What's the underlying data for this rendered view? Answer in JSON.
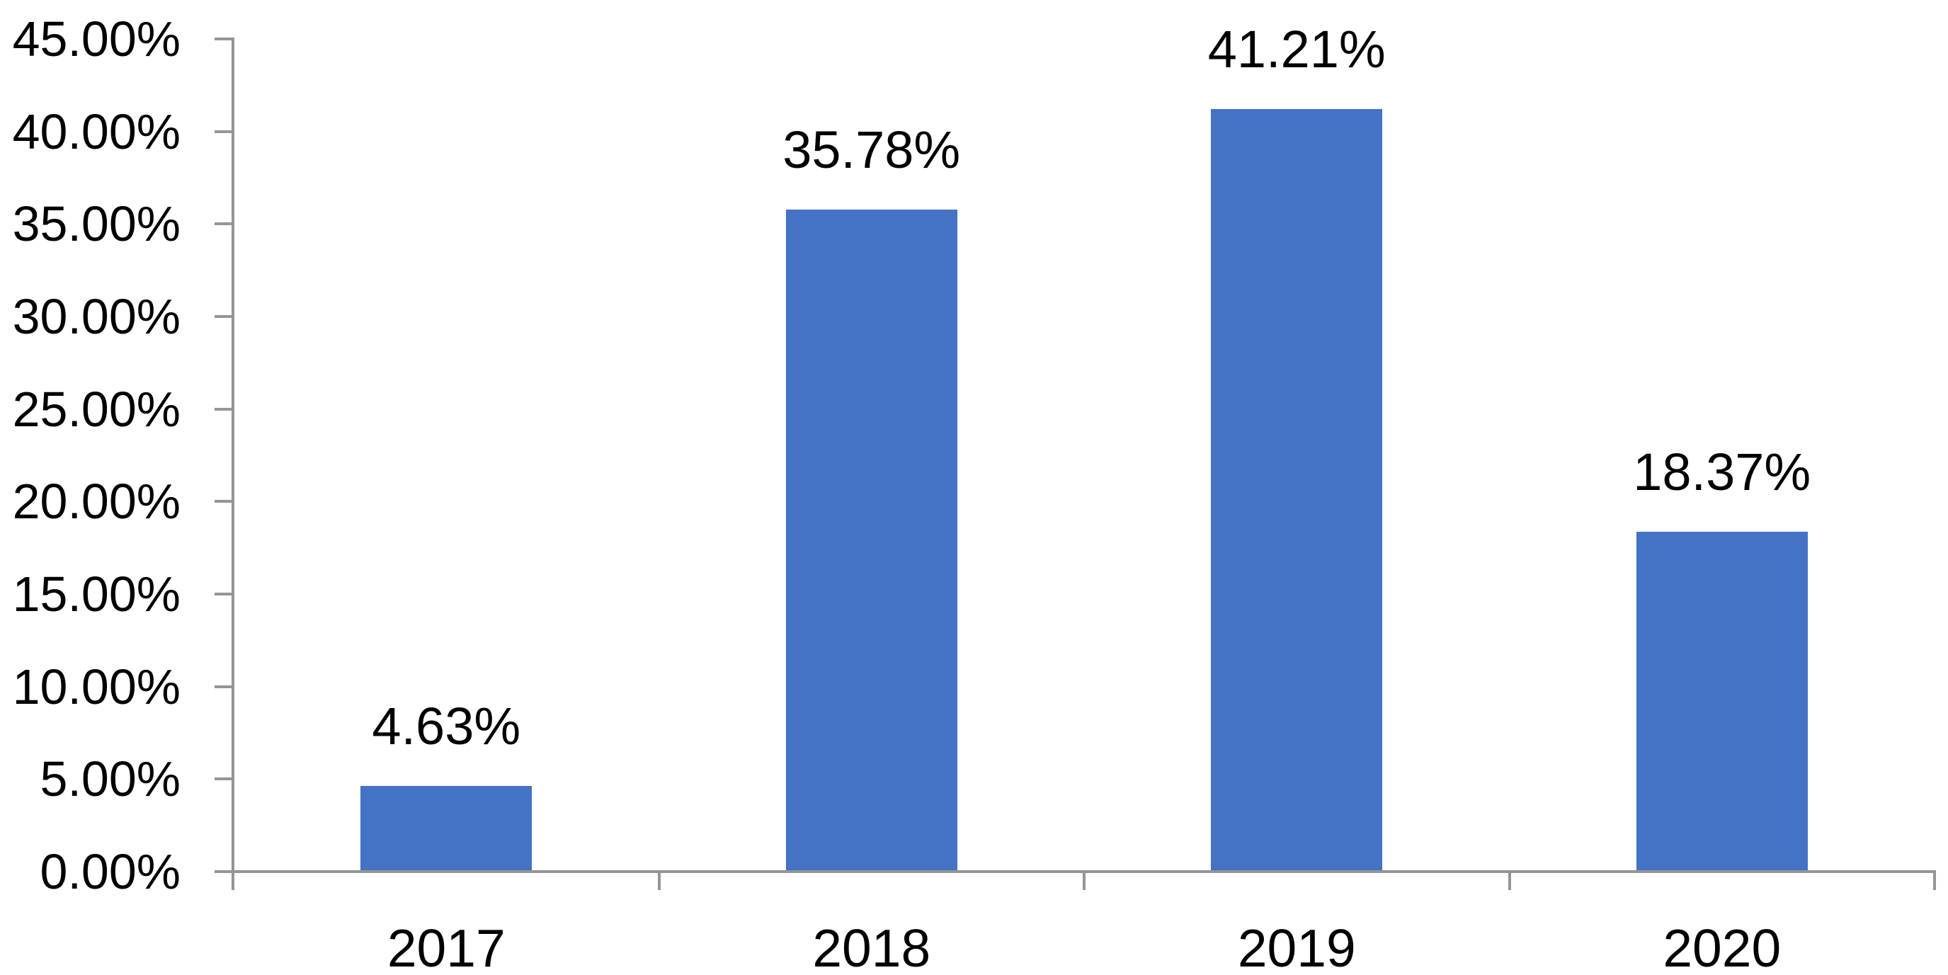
{
  "chart_data": {
    "type": "bar",
    "title": "",
    "xlabel": "",
    "ylabel": "",
    "categories": [
      "2017",
      "2018",
      "2019",
      "2020"
    ],
    "values": [
      4.63,
      35.78,
      41.21,
      18.37
    ],
    "data_labels": [
      "4.63%",
      "35.78%",
      "41.21%",
      "18.37%"
    ],
    "y_tick_labels": [
      "45.00%",
      "40.00%",
      "35.00%",
      "30.00%",
      "25.00%",
      "20.00%",
      "15.00%",
      "10.00%",
      "5.00%",
      "0.00%"
    ],
    "ylim": [
      0,
      45
    ],
    "y_tick_step": 5,
    "grid": false,
    "legend_position": "none",
    "bar_color": "#4472C4",
    "axis_color": "#959595",
    "text_color": "#000000",
    "background_color": "#ffffff"
  }
}
